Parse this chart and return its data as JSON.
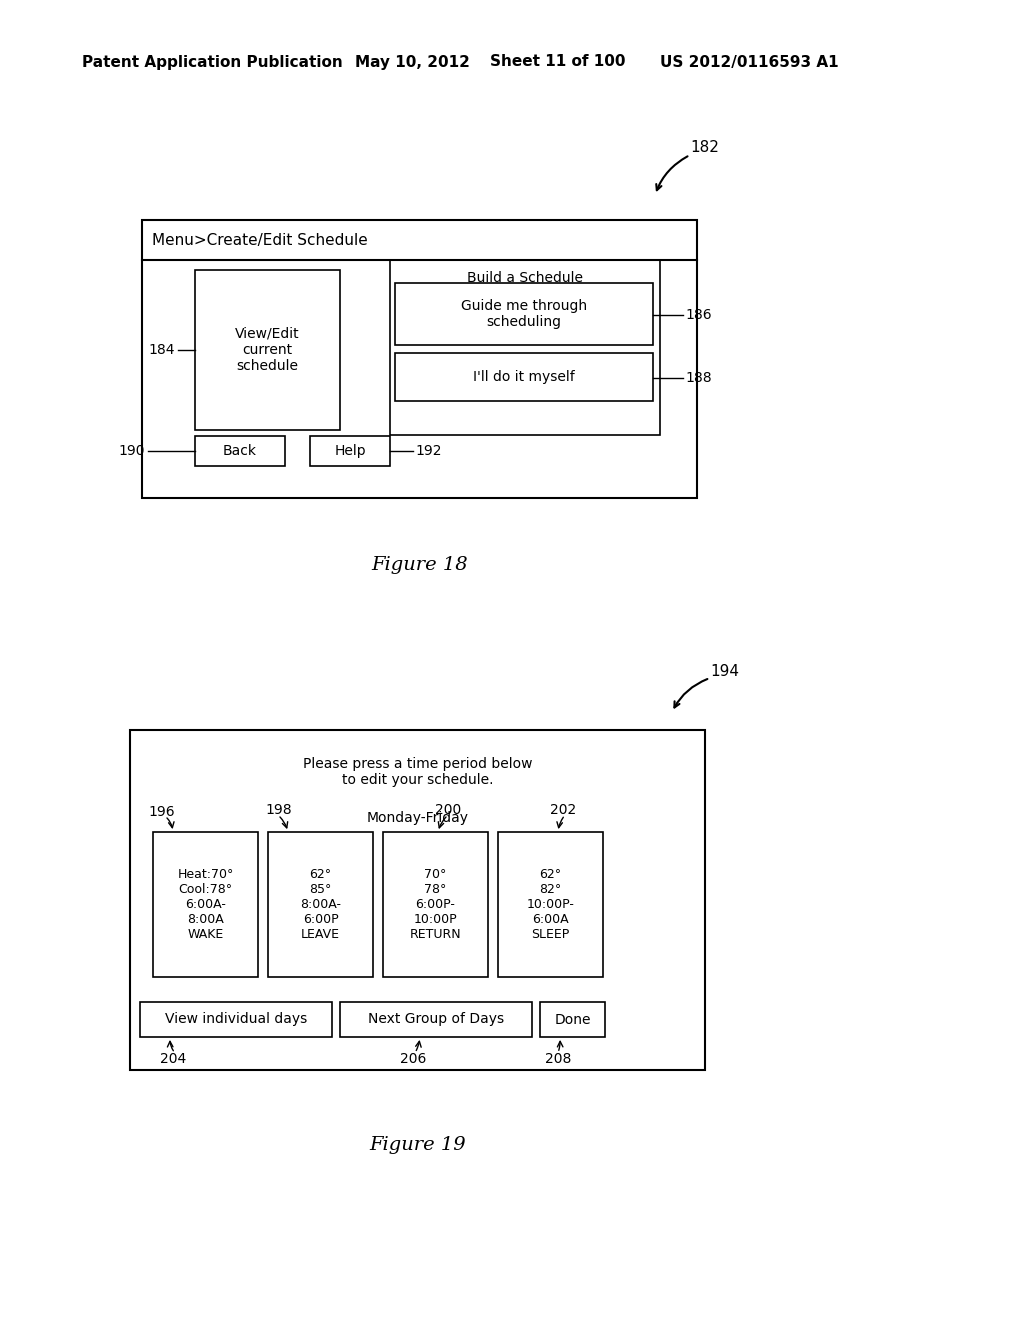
{
  "bg_color": "#ffffff",
  "header_text": "Patent Application Publication",
  "header_date": "May 10, 2012",
  "header_sheet": "Sheet 11 of 100",
  "header_patent": "US 2012/0116593 A1",
  "fig18": {
    "label": "182",
    "title": "Menu>Create/Edit Schedule",
    "box184_label": "184",
    "box184_text": "View/Edit\ncurrent\nschedule",
    "build_label": "Build a Schedule",
    "box186_text": "Guide me through\nscheduling",
    "box186_label": "186",
    "box188_text": "I'll do it myself",
    "box188_label": "188",
    "back_text": "Back",
    "back_label": "190",
    "help_text": "Help",
    "help_label": "192",
    "figure_caption": "Figure 18"
  },
  "fig19": {
    "label": "194",
    "header_text": "Please press a time period below\nto edit your schedule.",
    "day_label": "Monday-Friday",
    "col1_label": "196",
    "col2_label": "198",
    "col3_label": "200",
    "col4_label": "202",
    "col1_text": "Heat:70°\nCool:78°\n6:00A-\n8:00A\nWAKE",
    "col2_text": "62°\n85°\n8:00A-\n6:00P\nLEAVE",
    "col3_text": "70°\n78°\n6:00P-\n10:00P\nRETURN",
    "col4_text": "62°\n82°\n10:00P-\n6:00A\nSLEEP",
    "btn1_text": "View individual days",
    "btn1_label": "204",
    "btn2_text": "Next Group of Days",
    "btn2_label": "206",
    "btn3_text": "Done",
    "btn3_label": "208",
    "figure_caption": "Figure 19"
  }
}
